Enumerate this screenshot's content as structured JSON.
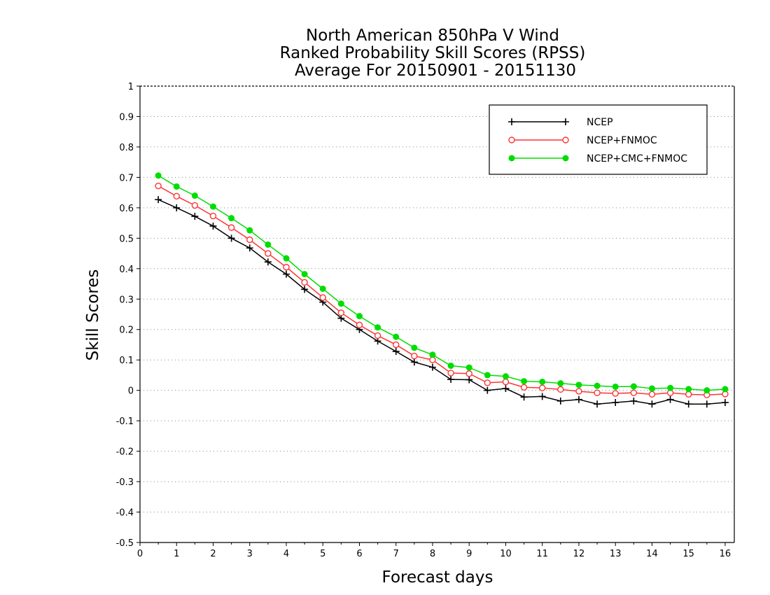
{
  "chart_data": {
    "type": "line",
    "title_lines": [
      "North American 850hPa V Wind",
      "Ranked Probability Skill Scores (RPSS)",
      "Average For 20150901 - 20151130"
    ],
    "xlabel": "Forecast days",
    "ylabel": "Skill Scores",
    "xlim": [
      0,
      16.25
    ],
    "ylim": [
      -0.5,
      1
    ],
    "xticks": [
      0,
      1,
      2,
      3,
      4,
      5,
      6,
      7,
      8,
      9,
      10,
      11,
      12,
      13,
      14,
      15,
      16
    ],
    "yticks": [
      1,
      0.9,
      0.8,
      0.7,
      0.6,
      0.5,
      0.4,
      0.3,
      0.2,
      0.1,
      0,
      -0.1,
      -0.2,
      -0.3,
      -0.4,
      -0.5
    ],
    "grid": "horizontal dotted",
    "legend_position": "top-right",
    "x": [
      0.5,
      1,
      1.5,
      2,
      2.5,
      3,
      3.5,
      4,
      4.5,
      5,
      5.5,
      6,
      6.5,
      7,
      7.5,
      8,
      8.5,
      9,
      9.5,
      10,
      10.5,
      11,
      11.5,
      12,
      12.5,
      13,
      13.5,
      14,
      14.5,
      15,
      15.5,
      16
    ],
    "series": [
      {
        "name": "NCEP",
        "color": "#000000",
        "marker": "plus",
        "values": [
          0.627,
          0.6,
          0.572,
          0.54,
          0.5,
          0.468,
          0.422,
          0.382,
          0.332,
          0.29,
          0.237,
          0.2,
          0.162,
          0.128,
          0.093,
          0.076,
          0.036,
          0.035,
          0.0,
          0.006,
          -0.022,
          -0.02,
          -0.035,
          -0.03,
          -0.045,
          -0.04,
          -0.035,
          -0.045,
          -0.03,
          -0.045,
          -0.045,
          -0.04
        ]
      },
      {
        "name": "NCEP+FNMOC",
        "color": "#ff3333",
        "marker": "open-circle",
        "values": [
          0.672,
          0.638,
          0.608,
          0.573,
          0.535,
          0.495,
          0.45,
          0.405,
          0.355,
          0.305,
          0.255,
          0.215,
          0.18,
          0.15,
          0.113,
          0.1,
          0.057,
          0.055,
          0.025,
          0.028,
          0.01,
          0.008,
          0.003,
          -0.003,
          -0.008,
          -0.01,
          -0.008,
          -0.013,
          -0.008,
          -0.013,
          -0.015,
          -0.012
        ]
      },
      {
        "name": "NCEP+CMC+FNMOC",
        "color": "#00dd00",
        "marker": "filled-circle",
        "values": [
          0.706,
          0.67,
          0.64,
          0.604,
          0.566,
          0.526,
          0.479,
          0.434,
          0.382,
          0.334,
          0.285,
          0.244,
          0.207,
          0.176,
          0.14,
          0.117,
          0.081,
          0.075,
          0.05,
          0.046,
          0.03,
          0.028,
          0.023,
          0.018,
          0.015,
          0.012,
          0.013,
          0.006,
          0.008,
          0.004,
          0.0,
          0.004
        ]
      }
    ]
  }
}
